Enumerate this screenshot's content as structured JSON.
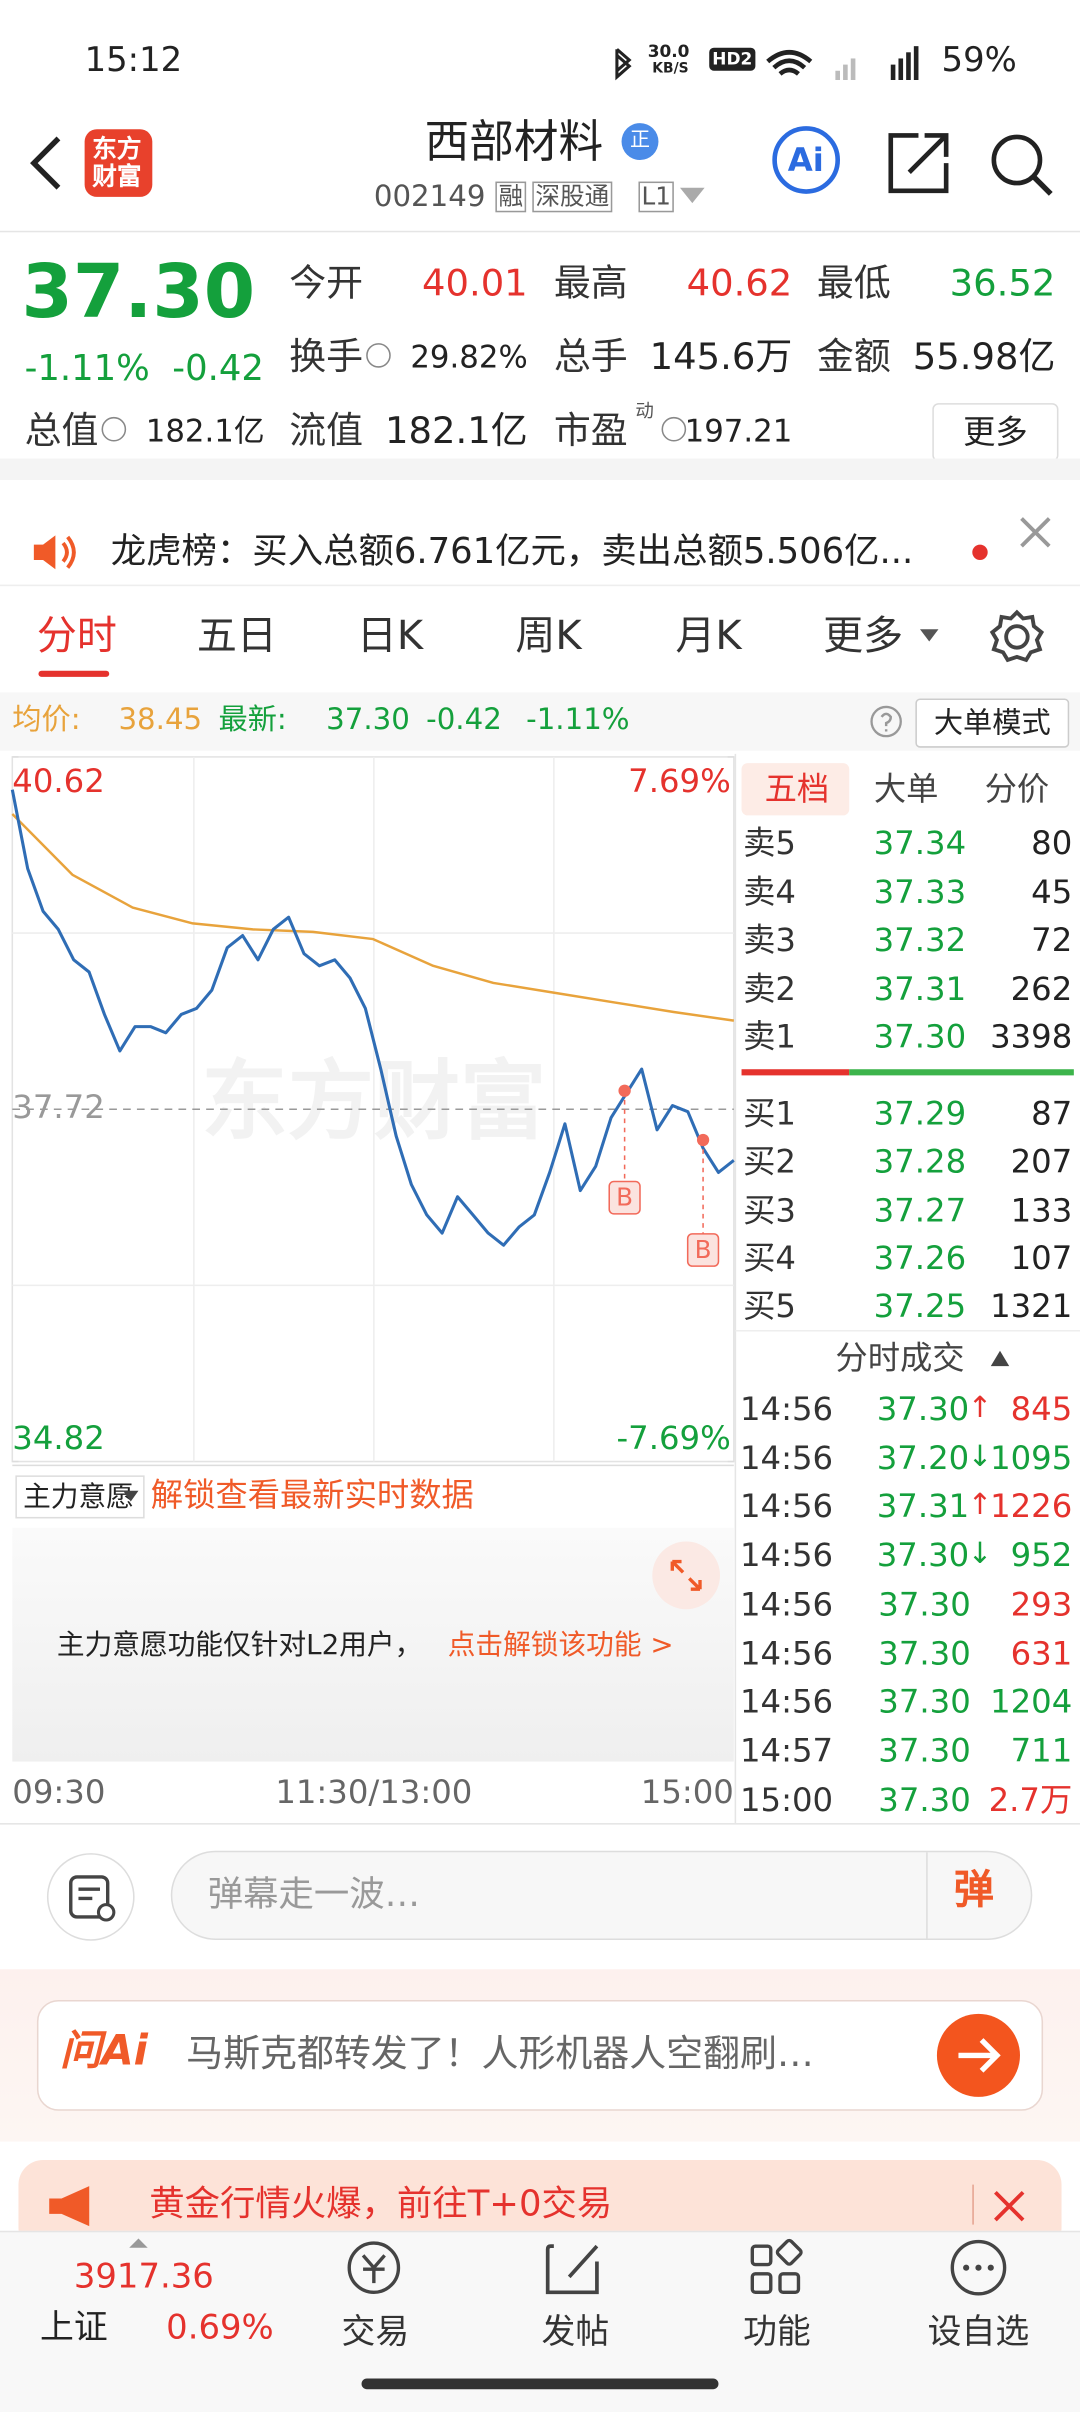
{
  "status": {
    "time": "15:12",
    "speed": "30.0",
    "speed_unit": "KB/S",
    "hd": "HD2",
    "battery": "59%"
  },
  "header": {
    "logo": [
      "东方",
      "财富"
    ],
    "title": "西部材料",
    "badge": "正",
    "code": "002149",
    "tags": [
      "融",
      "深股通",
      "L1"
    ],
    "ai": "Ai"
  },
  "quote": {
    "price": "37.30",
    "change_pct": "-1.11%",
    "change": "-0.42",
    "fields": [
      {
        "label": "今开",
        "value": "40.01"
      },
      {
        "label": "最高",
        "value": "40.62"
      },
      {
        "label": "最低",
        "value": "36.52"
      },
      {
        "label": "换手",
        "value": "29.82%"
      },
      {
        "label": "总手",
        "value": "145.6万"
      },
      {
        "label": "金额",
        "value": "55.98亿"
      },
      {
        "label": "总值",
        "value": "182.1亿"
      },
      {
        "label": "流值",
        "value": "182.1亿"
      },
      {
        "label": "市盈",
        "value": "197.21"
      }
    ],
    "pe_sup": "动",
    "more": "更多"
  },
  "notice": "龙虎榜：买入总额6.761亿元，卖出总额5.506亿...",
  "tabs": [
    "分时",
    "五日",
    "日K",
    "周K",
    "月K",
    "更多"
  ],
  "infobar": {
    "avg_label": "均价:",
    "avg": "38.45",
    "latest_label": "最新:",
    "latest": "37.30",
    "change": "-0.42",
    "change_pct": "-1.11%",
    "button": "大单模式"
  },
  "chart_data": {
    "type": "line",
    "ylim": [
      34.82,
      40.62
    ],
    "yticks": [
      40.62,
      37.72,
      34.82
    ],
    "y2lim": [
      -7.69,
      7.69
    ],
    "y2ticks": [
      {
        "value": 7.69,
        "label": "7.69%"
      },
      {
        "value": -7.69,
        "label": "-7.69%"
      }
    ],
    "xticks": [
      "09:30",
      "11:30/13:00",
      "15:00"
    ],
    "series": [
      {
        "color": "#2f6db5",
        "values": [
          40.35,
          39.7,
          39.35,
          39.2,
          38.95,
          38.85,
          38.5,
          38.2,
          38.4,
          38.4,
          38.35,
          38.5,
          38.55,
          38.7,
          39.05,
          39.15,
          38.95,
          39.2,
          39.3,
          39.0,
          38.9,
          38.95,
          38.8,
          38.55,
          38.05,
          37.5,
          37.1,
          36.85,
          36.7,
          37.0,
          36.85,
          36.7,
          36.6,
          36.75,
          36.85,
          37.2,
          37.6,
          37.05,
          37.25,
          37.65,
          37.85,
          38.05,
          37.55,
          37.75,
          37.7,
          37.4,
          37.2,
          37.3
        ]
      },
      {
        "color": "#e8a33c",
        "values": [
          40.15,
          39.65,
          39.38,
          39.25,
          39.2,
          39.18,
          39.12,
          38.9,
          38.76,
          38.68,
          38.6,
          38.52,
          38.45
        ]
      }
    ],
    "annotations": [
      "B",
      "B"
    ]
  },
  "order_book": {
    "tabs": [
      "五档",
      "大单",
      "分价"
    ],
    "asks": [
      {
        "label": "卖5",
        "price": "37.34",
        "volume": "80"
      },
      {
        "label": "卖4",
        "price": "37.33",
        "volume": "45"
      },
      {
        "label": "卖3",
        "price": "37.32",
        "volume": "72"
      },
      {
        "label": "卖2",
        "price": "37.31",
        "volume": "262"
      },
      {
        "label": "卖1",
        "price": "37.30",
        "volume": "3398"
      }
    ],
    "bids": [
      {
        "label": "买1",
        "price": "37.29",
        "volume": "87"
      },
      {
        "label": "买2",
        "price": "37.28",
        "volume": "207"
      },
      {
        "label": "买3",
        "price": "37.27",
        "volume": "133"
      },
      {
        "label": "买4",
        "price": "37.26",
        "volume": "107"
      },
      {
        "label": "买5",
        "price": "37.25",
        "volume": "1321"
      }
    ]
  },
  "trades": {
    "title": "分时成交",
    "rows": [
      {
        "time": "14:56",
        "price": "37.30",
        "dir": "↑",
        "volume": "845",
        "color": "#e5322d"
      },
      {
        "time": "14:56",
        "price": "37.20",
        "dir": "↓",
        "volume": "1095",
        "color": "#14a03c"
      },
      {
        "time": "14:56",
        "price": "37.31",
        "dir": "↑",
        "volume": "1226",
        "color": "#e5322d"
      },
      {
        "time": "14:56",
        "price": "37.30",
        "dir": "↓",
        "volume": "952",
        "color": "#14a03c"
      },
      {
        "time": "14:56",
        "price": "37.30",
        "dir": null,
        "volume": "293",
        "color": "#e5322d"
      },
      {
        "time": "14:56",
        "price": "37.30",
        "dir": null,
        "volume": "631",
        "color": "#e5322d"
      },
      {
        "time": "14:56",
        "price": "37.30",
        "dir": null,
        "volume": "1204",
        "color": "#14a03c"
      },
      {
        "time": "14:57",
        "price": "37.30",
        "dir": null,
        "volume": "711",
        "color": "#14a03c"
      },
      {
        "time": "15:00",
        "price": "37.30",
        "dir": null,
        "volume": "2.7万",
        "color": "#e5322d"
      }
    ]
  },
  "lower": {
    "tag": "主力意愿",
    "unlock": "解锁查看最新实时数据",
    "note": "主力意愿功能仅针对L2用户，",
    "link": "点击解锁该功能 >"
  },
  "comment": {
    "placeholder": "弹幕走一波…",
    "button": "弹"
  },
  "ai_bar": {
    "logo": "问Ai",
    "text": "马斯克都转发了！人形机器人空翻刷…"
  },
  "banner": "黄金行情火爆，前往T+0交易",
  "nav": {
    "index_value": "3917.36",
    "index_name": "上证",
    "index_change": "0.69%",
    "items": [
      "交易",
      "发帖",
      "功能",
      "设自选"
    ]
  }
}
